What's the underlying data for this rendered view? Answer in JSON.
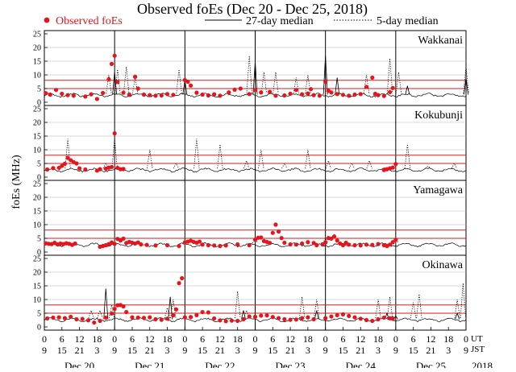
{
  "chart_data": {
    "type": "scatter",
    "title": "Observed foEs (Dec 20 - Dec 25, 2018)",
    "ylabel": "foEs (MHz)",
    "year_label": "2018",
    "legend": {
      "observed": "Observed foEs",
      "median27": "27-day median",
      "median5": "5-day median",
      "placement": "top"
    },
    "colors": {
      "observed": "#e8141c",
      "median27": "#000000",
      "median5": "#000000",
      "reference": "#d21e1e",
      "grid": "#b4b4b4"
    },
    "ylim": [
      0,
      25
    ],
    "yticks": [
      0,
      5,
      10,
      15,
      20,
      25
    ],
    "reference_lines": [
      5,
      8
    ],
    "xlim_hours_ut": [
      0,
      144
    ],
    "x_tick_labels_ut": [
      "0",
      "6",
      "12",
      "18",
      "0",
      "6",
      "12",
      "18",
      "0",
      "6",
      "12",
      "18",
      "0",
      "6",
      "12",
      "18",
      "0",
      "6",
      "12",
      "18",
      "0",
      "6",
      "12",
      "18",
      "0"
    ],
    "x_tick_labels_jst": [
      "9",
      "15",
      "21",
      "3",
      "9",
      "15",
      "21",
      "3",
      "9",
      "15",
      "21",
      "3",
      "9",
      "15",
      "21",
      "3",
      "9",
      "15",
      "21",
      "3",
      "9",
      "15",
      "21",
      "3",
      "9"
    ],
    "x_axis_row_labels": [
      "UT",
      "JST"
    ],
    "days": [
      "Dec 20",
      "Dec 21",
      "Dec 22",
      "Dec 23",
      "Dec 24",
      "Dec 25"
    ],
    "stations": [
      {
        "name": "Wakkanai",
        "observed": [
          [
            0.5,
            3.3
          ],
          [
            2,
            2.8
          ],
          [
            4,
            4.5
          ],
          [
            6,
            3.1
          ],
          [
            8,
            2.6
          ],
          [
            10,
            2.4
          ],
          [
            14,
            2.1
          ],
          [
            16,
            2.9
          ],
          [
            18,
            1.2
          ],
          [
            20,
            3.4
          ],
          [
            22,
            8.4
          ],
          [
            23,
            14.0
          ],
          [
            24,
            17.0
          ],
          [
            25,
            7.4
          ],
          [
            27,
            3.5
          ],
          [
            29,
            2.8
          ],
          [
            31,
            9.3
          ],
          [
            32,
            5.0
          ],
          [
            34,
            2.8
          ],
          [
            36,
            2.6
          ],
          [
            38,
            2.4
          ],
          [
            40,
            2.5
          ],
          [
            42,
            3.0
          ],
          [
            44,
            2.7
          ],
          [
            48,
            8.1
          ],
          [
            49,
            7.5
          ],
          [
            50,
            6.1
          ],
          [
            52,
            3.5
          ],
          [
            54,
            2.8
          ],
          [
            56,
            2.5
          ],
          [
            58,
            2.9
          ],
          [
            60,
            2.4
          ],
          [
            63,
            3.6
          ],
          [
            65,
            4.6
          ],
          [
            67,
            5.0
          ],
          [
            70,
            3.0
          ],
          [
            72,
            4.5
          ],
          [
            74,
            3.6
          ],
          [
            77,
            3.8
          ],
          [
            79,
            2.4
          ],
          [
            82,
            2.5
          ],
          [
            84,
            3.1
          ],
          [
            86,
            4.5
          ],
          [
            88,
            2.9
          ],
          [
            90,
            3.2
          ],
          [
            91,
            4.8
          ],
          [
            92,
            2.6
          ],
          [
            94,
            2.4
          ],
          [
            96,
            7.5
          ],
          [
            97,
            4.2
          ],
          [
            98,
            3.6
          ],
          [
            100,
            3.0
          ],
          [
            102,
            2.7
          ],
          [
            104,
            2.4
          ],
          [
            106,
            2.8
          ],
          [
            108,
            3.0
          ],
          [
            110,
            5.6
          ],
          [
            112,
            9.0
          ],
          [
            113,
            3.1
          ],
          [
            114,
            2.6
          ],
          [
            116,
            2.3
          ],
          [
            118,
            3.7
          ],
          [
            119,
            5.2
          ]
        ],
        "spikes_5day": [
          [
            22,
            10
          ],
          [
            25,
            12
          ],
          [
            28,
            13
          ],
          [
            31,
            9
          ],
          [
            46,
            12
          ],
          [
            70,
            17
          ],
          [
            75,
            11
          ],
          [
            79,
            11
          ],
          [
            86,
            9
          ],
          [
            90,
            10
          ],
          [
            110,
            10
          ],
          [
            118,
            16
          ],
          [
            121,
            11
          ],
          [
            144,
            13
          ]
        ],
        "median27_spikes": [
          [
            24,
            11
          ],
          [
            48,
            8
          ],
          [
            72,
            15
          ],
          [
            96,
            17
          ],
          [
            100,
            9
          ],
          [
            124,
            6
          ],
          [
            144,
            9
          ]
        ]
      },
      {
        "name": "Kokubunji",
        "observed": [
          [
            1,
            2.8
          ],
          [
            3,
            3.3
          ],
          [
            5,
            3.4
          ],
          [
            6,
            4.1
          ],
          [
            7,
            4.9
          ],
          [
            8,
            7.0
          ],
          [
            9,
            6.2
          ],
          [
            10,
            5.5
          ],
          [
            11,
            5.0
          ],
          [
            12,
            3.2
          ],
          [
            14,
            2.8
          ],
          [
            18,
            2.4
          ],
          [
            19,
            2.9
          ],
          [
            21,
            3.1
          ],
          [
            22,
            3.5
          ],
          [
            23,
            3.7
          ],
          [
            24,
            16.0
          ],
          [
            25,
            3.4
          ],
          [
            26,
            2.9
          ],
          [
            27,
            3.0
          ],
          [
            116,
            2.6
          ],
          [
            117,
            2.9
          ],
          [
            118,
            3.2
          ],
          [
            119,
            3.5
          ],
          [
            120,
            4.8
          ]
        ],
        "spikes_5day": [
          [
            8,
            14
          ],
          [
            21,
            5
          ],
          [
            24,
            14
          ],
          [
            36,
            10
          ],
          [
            45,
            5
          ],
          [
            52,
            14
          ],
          [
            60,
            12
          ],
          [
            69,
            6
          ],
          [
            74,
            10
          ],
          [
            82,
            5
          ],
          [
            90,
            10
          ],
          [
            97,
            6
          ],
          [
            105,
            5
          ],
          [
            111,
            6
          ],
          [
            124,
            12
          ],
          [
            131,
            4
          ],
          [
            140,
            5
          ]
        ],
        "median27_spikes": []
      },
      {
        "name": "Yamagawa",
        "observed": [
          [
            0.5,
            3.2
          ],
          [
            1.5,
            3.0
          ],
          [
            2.5,
            2.9
          ],
          [
            3.5,
            3.4
          ],
          [
            4.5,
            2.8
          ],
          [
            5.5,
            3.1
          ],
          [
            6.5,
            2.9
          ],
          [
            7.5,
            3.2
          ],
          [
            8.5,
            3.0
          ],
          [
            9.5,
            2.6
          ],
          [
            10.5,
            3.1
          ],
          [
            19,
            1.9
          ],
          [
            20,
            2.2
          ],
          [
            21,
            2.5
          ],
          [
            22,
            2.9
          ],
          [
            23,
            3.5
          ],
          [
            24,
            3.0
          ],
          [
            25,
            4.8
          ],
          [
            26,
            4.2
          ],
          [
            27,
            4.9
          ],
          [
            28,
            3.3
          ],
          [
            29,
            3.7
          ],
          [
            30,
            3.4
          ],
          [
            31,
            3.1
          ],
          [
            32,
            3.5
          ],
          [
            33,
            2.8
          ],
          [
            35,
            2.6
          ],
          [
            38,
            2.4
          ],
          [
            42,
            2.5
          ],
          [
            46,
            2.2
          ],
          [
            48,
            3.5
          ],
          [
            49,
            3.8
          ],
          [
            50,
            4.1
          ],
          [
            51,
            3.7
          ],
          [
            52,
            3.4
          ],
          [
            53,
            3.8
          ],
          [
            54,
            2.7
          ],
          [
            56,
            2.5
          ],
          [
            58,
            2.4
          ],
          [
            60,
            2.2
          ],
          [
            62,
            2.4
          ],
          [
            66,
            2.8
          ],
          [
            70,
            2.5
          ],
          [
            72,
            4.5
          ],
          [
            73,
            5.2
          ],
          [
            74,
            5.3
          ],
          [
            75,
            4.0
          ],
          [
            76,
            3.7
          ],
          [
            77,
            3.3
          ],
          [
            78,
            7.0
          ],
          [
            79,
            10.0
          ],
          [
            80,
            7.5
          ],
          [
            81,
            5.1
          ],
          [
            82,
            3.4
          ],
          [
            84,
            2.8
          ],
          [
            86,
            2.7
          ],
          [
            88,
            3.1
          ],
          [
            90,
            3.6
          ],
          [
            92,
            3.3
          ],
          [
            93,
            2.5
          ],
          [
            95,
            2.8
          ],
          [
            96,
            3.5
          ],
          [
            97,
            5.1
          ],
          [
            98,
            4.9
          ],
          [
            99,
            5.7
          ],
          [
            100,
            4.2
          ],
          [
            101,
            3.1
          ],
          [
            102,
            2.5
          ],
          [
            103,
            3.4
          ],
          [
            104,
            2.7
          ],
          [
            106,
            2.5
          ],
          [
            108,
            2.4
          ],
          [
            110,
            2.7
          ],
          [
            112,
            2.6
          ],
          [
            114,
            2.9
          ],
          [
            116,
            2.5
          ],
          [
            117,
            2.2
          ],
          [
            118,
            2.7
          ],
          [
            119,
            3.6
          ],
          [
            120,
            4.5
          ]
        ],
        "spikes_5day": [
          [
            72,
            5
          ],
          [
            96,
            5
          ],
          [
            120,
            5
          ]
        ],
        "median27_spikes": []
      },
      {
        "name": "Okinawa",
        "observed": [
          [
            1,
            3.1
          ],
          [
            3,
            3.4
          ],
          [
            5,
            3.5
          ],
          [
            7,
            3.2
          ],
          [
            9,
            3.7
          ],
          [
            11,
            2.8
          ],
          [
            13,
            2.9
          ],
          [
            15,
            2.4
          ],
          [
            17,
            1.6
          ],
          [
            19,
            2.2
          ],
          [
            21,
            3.4
          ],
          [
            23,
            4.9
          ],
          [
            24,
            6.6
          ],
          [
            25,
            7.9
          ],
          [
            26,
            8.0
          ],
          [
            27,
            7.5
          ],
          [
            28,
            5.4
          ],
          [
            30,
            3.5
          ],
          [
            32,
            3.4
          ],
          [
            34,
            3.3
          ],
          [
            36,
            3.5
          ],
          [
            38,
            2.8
          ],
          [
            40,
            2.6
          ],
          [
            42,
            3.0
          ],
          [
            44,
            4.2
          ],
          [
            45,
            6.4
          ],
          [
            46,
            16.0
          ],
          [
            47,
            17.8
          ],
          [
            48,
            3.5
          ],
          [
            50,
            3.6
          ],
          [
            52,
            4.3
          ],
          [
            54,
            5.4
          ],
          [
            56,
            5.3
          ],
          [
            58,
            3.1
          ],
          [
            60,
            2.4
          ],
          [
            62,
            2.1
          ],
          [
            64,
            2.3
          ],
          [
            66,
            2.2
          ],
          [
            68,
            2.8
          ],
          [
            70,
            3.8
          ],
          [
            72,
            3.7
          ],
          [
            74,
            4.1
          ],
          [
            76,
            4.2
          ],
          [
            78,
            3.6
          ],
          [
            80,
            3.2
          ],
          [
            82,
            2.8
          ],
          [
            84,
            2.6
          ],
          [
            86,
            2.7
          ],
          [
            88,
            3.2
          ],
          [
            90,
            3.5
          ],
          [
            92,
            2.8
          ],
          [
            96,
            3.2
          ],
          [
            98,
            3.8
          ],
          [
            100,
            4.3
          ],
          [
            102,
            4.6
          ],
          [
            104,
            4.0
          ],
          [
            106,
            3.5
          ],
          [
            108,
            3.0
          ],
          [
            110,
            2.5
          ],
          [
            112,
            2.2
          ],
          [
            114,
            2.8
          ],
          [
            116,
            3.4
          ],
          [
            118,
            3.2
          ],
          [
            119,
            3.1
          ]
        ],
        "spikes_5day": [
          [
            16,
            6
          ],
          [
            19,
            6
          ],
          [
            23,
            8
          ],
          [
            42,
            7
          ],
          [
            44,
            10
          ],
          [
            66,
            13
          ],
          [
            69,
            6
          ],
          [
            88,
            11
          ],
          [
            93,
            10
          ],
          [
            114,
            10
          ],
          [
            118,
            11
          ],
          [
            126,
            9
          ],
          [
            128,
            12
          ],
          [
            141,
            10
          ],
          [
            143,
            16
          ]
        ],
        "median27_spikes": [
          [
            21,
            14
          ],
          [
            43,
            11
          ],
          [
            68,
            6
          ],
          [
            93,
            6
          ],
          [
            117,
            5
          ],
          [
            120,
            4
          ],
          [
            141,
            5
          ]
        ]
      }
    ]
  }
}
